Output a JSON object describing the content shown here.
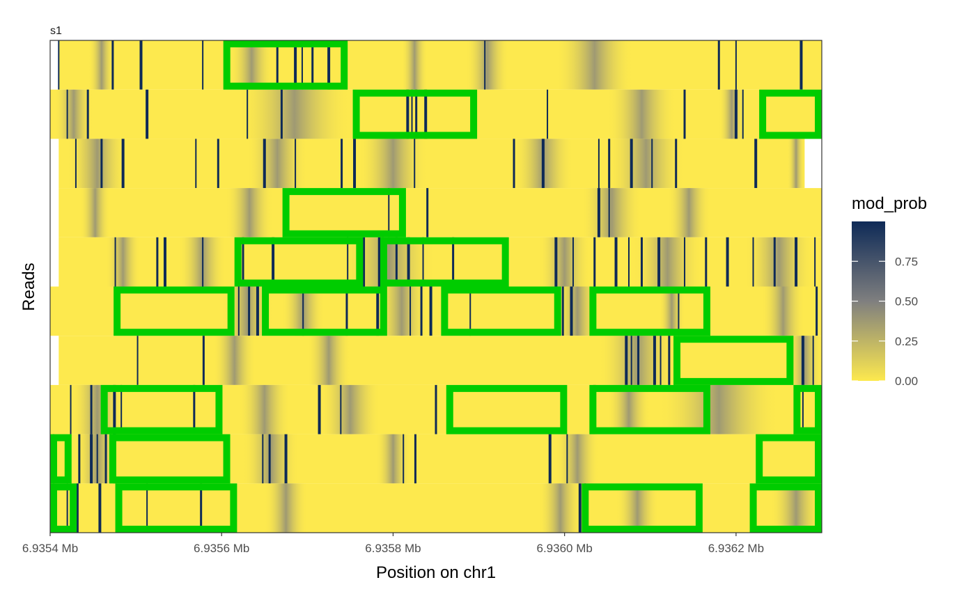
{
  "chart_data": {
    "type": "heatmap",
    "facet_label": "s1",
    "xlabel": "Position on chr1",
    "ylabel": "Reads",
    "xlim": [
      6.9354,
      6.9363
    ],
    "x_ticks": [
      {
        "value": 6.9354,
        "label": "6.9354 Mb"
      },
      {
        "value": 6.9356,
        "label": "6.9356 Mb"
      },
      {
        "value": 6.9358,
        "label": "6.9358 Mb"
      },
      {
        "value": 6.936,
        "label": "6.9360 Mb"
      },
      {
        "value": 6.9362,
        "label": "6.9362 Mb"
      }
    ],
    "legend": {
      "title": "mod_prob",
      "placement": "right",
      "ticks": [
        {
          "value": 0.75,
          "label": "0.75"
        },
        {
          "value": 0.5,
          "label": "0.50"
        },
        {
          "value": 0.25,
          "label": "0.25"
        },
        {
          "value": 0.0,
          "label": "0.00"
        }
      ],
      "range": [
        0,
        1
      ],
      "low_color": "#FDE94E",
      "mid_color": "#7F7F7F",
      "high_color": "#0E2A57"
    },
    "highlight_color": "#00CC00",
    "reads": [
      {
        "start": 6.93541,
        "end": 6.9363,
        "high_marks": [
          6.93541,
          6.935473,
          6.935506,
          6.935578,
          6.935665,
          6.935686,
          6.935694,
          6.935706,
          6.935725,
          6.935907,
          6.93618,
          6.936276,
          6.9362
        ],
        "gray_bands": [
          [
            6.935445,
            6.935475
          ],
          [
            6.93561,
            6.93566
          ],
          [
            6.93581,
            6.93584
          ],
          [
            6.935885,
            6.935935
          ],
          [
            6.93599,
            6.93608
          ]
        ]
      },
      {
        "start": 6.9354,
        "end": 6.9363,
        "high_marks": [
          6.93542,
          6.935444,
          6.935513,
          6.93563,
          6.93567,
          6.935817,
          6.935822,
          6.935827,
          6.935838,
          6.93598,
          6.93614,
          6.9362,
          6.936208
        ],
        "gray_bands": [
          [
            6.935405,
            6.93545
          ],
          [
            6.93562,
            6.93575
          ],
          [
            6.93605,
            6.93613
          ],
          [
            6.93618,
            6.93621
          ]
        ]
      },
      {
        "start": 6.93541,
        "end": 6.93628,
        "high_marks": [
          6.93543,
          6.93546,
          6.935485,
          6.93557,
          6.935596,
          6.93565,
          6.935686,
          6.93574,
          6.935755,
          6.935825,
          6.935941,
          6.935975,
          6.93604,
          6.936052,
          6.936078,
          6.936102,
          6.93613,
          6.936223
        ],
        "gray_bands": [
          [
            6.93542,
            6.93549
          ],
          [
            6.93563,
            6.9357
          ],
          [
            6.93576,
            6.93584
          ],
          [
            6.93594,
            6.93601
          ],
          [
            6.93605,
            6.93614
          ],
          [
            6.93626,
            6.93628
          ]
        ]
      },
      {
        "start": 6.93541,
        "end": 6.9363,
        "high_marks": [
          6.935795,
          6.93584,
          6.93604,
          6.936052
        ],
        "gray_bands": [
          [
            6.935435,
            6.93547
          ],
          [
            6.935605,
            6.93566
          ],
          [
            6.93602,
            6.93609
          ],
          [
            6.93612,
            6.93617
          ]
        ]
      },
      {
        "start": 6.93541,
        "end": 6.9363,
        "high_marks": [
          6.935476,
          6.935525,
          6.935534,
          6.935578,
          6.935625,
          6.93566,
          6.935747,
          6.935766,
          6.935784,
          6.935788,
          6.935804,
          6.935818,
          6.935835,
          6.93587,
          6.93599,
          6.93601,
          6.936035,
          6.93606,
          6.936075,
          6.93609,
          6.93611,
          6.93614,
          6.936165,
          6.93619,
          6.93622,
          6.936245,
          6.93627,
          6.936292
        ],
        "gray_bands": [
          [
            6.935465,
            6.935505
          ],
          [
            6.93555,
            6.935605
          ],
          [
            6.93574,
            6.93585
          ],
          [
            6.93597,
            6.93603
          ],
          [
            6.93608,
            6.93616
          ],
          [
            6.93621,
            6.93629
          ]
        ]
      },
      {
        "start": 6.9354,
        "end": 6.9363,
        "high_marks": [
          6.93562,
          6.935632,
          6.935642,
          6.935695,
          6.935746,
          6.935782,
          6.93582,
          6.935833,
          6.935844,
          6.93589,
          6.935998,
          6.936008,
          6.936133,
          6.936294
        ],
        "gray_bands": [
          [
            6.9356,
            6.93566
          ],
          [
            6.93567,
            6.93572
          ],
          [
            6.93578,
            6.93584
          ],
          [
            6.93599,
            6.93604
          ],
          [
            6.93611,
            6.93614
          ],
          [
            6.93623,
            6.93628
          ]
        ]
      },
      {
        "start": 6.93541,
        "end": 6.9363,
        "high_marks": [
          6.935502,
          6.935579,
          6.936072,
          6.936078,
          6.936086,
          6.936105,
          6.936112,
          6.936122,
          6.936278,
          6.93629
        ],
        "gray_bands": [
          [
            6.93559,
            6.93564
          ],
          [
            6.9357,
            6.93575
          ],
          [
            6.93604,
            6.93613
          ],
          [
            6.93626,
            6.9363
          ]
        ]
      },
      {
        "start": 6.9354,
        "end": 6.9363,
        "high_marks": [
          6.935424,
          6.935448,
          6.935475,
          6.935483,
          6.935568,
          6.935714,
          6.935739,
          6.93585,
          6.936035,
          6.936278
        ],
        "gray_bands": [
          [
            6.935425,
            6.935485
          ],
          [
            6.93562,
            6.93568
          ],
          [
            6.935715,
            6.935785
          ],
          [
            6.93605,
            6.9361
          ],
          [
            6.93611,
            6.93625
          ]
        ]
      },
      {
        "start": 6.9354,
        "end": 6.9363,
        "high_marks": [
          6.935404,
          6.935434,
          6.935448,
          6.935455,
          6.935465,
          6.935475,
          6.935648,
          6.935656,
          6.935675,
          6.935812,
          6.935826,
          6.935983,
          6.936003
        ],
        "gray_bands": [
          [
            6.93543,
            6.93548
          ],
          [
            6.935625,
            6.93569
          ],
          [
            6.93578,
            6.93582
          ],
          [
            6.93599,
            6.93604
          ]
        ]
      },
      {
        "start": 6.9354,
        "end": 6.9363,
        "high_marks": [
          6.93542,
          6.935432,
          6.935458,
          6.935513,
          6.935576,
          6.936018,
          6.936024
        ],
        "gray_bands": [
          [
            6.93565,
            6.9357
          ],
          [
            6.93597,
            6.93602
          ],
          [
            6.93606,
            6.93611
          ],
          [
            6.93624,
            6.9363
          ]
        ]
      }
    ],
    "highlight_boxes": [
      {
        "read": 1,
        "start": 6.935602,
        "end": 6.935747
      },
      {
        "read": 2,
        "start": 6.935753,
        "end": 6.935898
      },
      {
        "read": 2,
        "start": 6.936227,
        "end": 6.9363
      },
      {
        "read": 4,
        "start": 6.935671,
        "end": 6.935815
      },
      {
        "read": 5,
        "start": 6.935615,
        "end": 6.935765
      },
      {
        "read": 5,
        "start": 6.935785,
        "end": 6.935935
      },
      {
        "read": 6,
        "start": 6.935474,
        "end": 6.935615
      },
      {
        "read": 6,
        "start": 6.935647,
        "end": 6.935793
      },
      {
        "read": 6,
        "start": 6.935856,
        "end": 6.935996
      },
      {
        "read": 6,
        "start": 6.936029,
        "end": 6.93617
      },
      {
        "read": 7,
        "start": 6.936127,
        "end": 6.936267
      },
      {
        "read": 8,
        "start": 6.935459,
        "end": 6.935601
      },
      {
        "read": 8,
        "start": 6.935862,
        "end": 6.936003
      },
      {
        "read": 8,
        "start": 6.936029,
        "end": 6.93617
      },
      {
        "read": 8,
        "start": 6.936267,
        "end": 6.9363
      },
      {
        "read": 9,
        "start": 6.9354,
        "end": 6.935425
      },
      {
        "read": 9,
        "start": 6.935469,
        "end": 6.93561
      },
      {
        "read": 9,
        "start": 6.936223,
        "end": 6.9363
      },
      {
        "read": 10,
        "start": 6.9354,
        "end": 6.935431
      },
      {
        "read": 10,
        "start": 6.935476,
        "end": 6.935618
      },
      {
        "read": 10,
        "start": 6.93602,
        "end": 6.936161
      },
      {
        "read": 10,
        "start": 6.936216,
        "end": 6.9363
      }
    ]
  }
}
